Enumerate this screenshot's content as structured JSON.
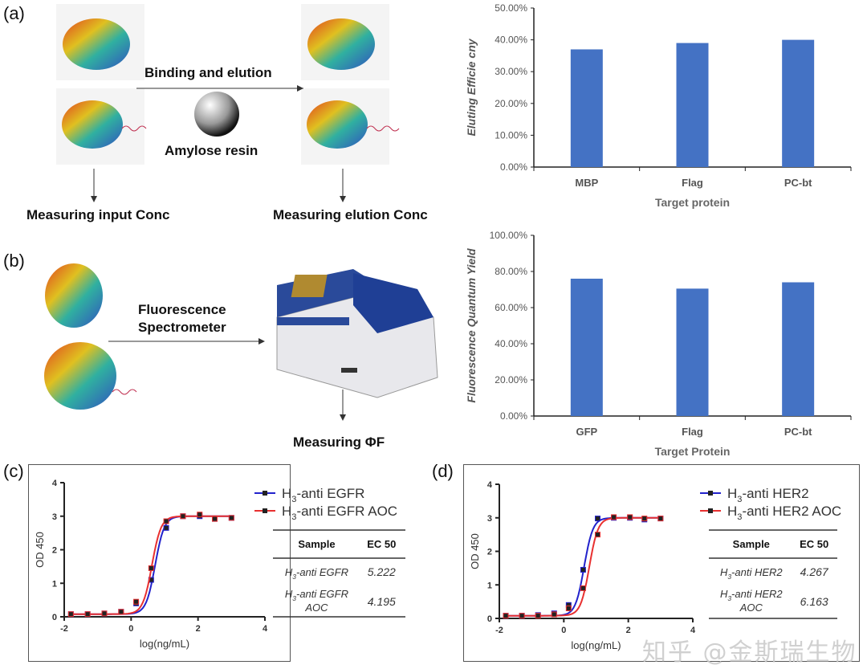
{
  "panels": {
    "a": {
      "label": "(a)",
      "step": "Binding and elution",
      "resin": "Amylose resin",
      "input": "Measuring input Conc",
      "elution": "Measuring elution Conc"
    },
    "b": {
      "label": "(b)",
      "instrument_line1": "Fluorescence",
      "instrument_line2": "Spectrometer",
      "measure": "Measuring ΦF"
    },
    "c": {
      "label": "(c)"
    },
    "d": {
      "label": "(d)"
    }
  },
  "watermark": "知乎 @金斯瑞生物",
  "colors": {
    "bar": "#4472C4",
    "blue": "#2222CC",
    "red": "#E83030",
    "axis": "#222222"
  },
  "chart_data": [
    {
      "id": "a",
      "type": "bar",
      "categories": [
        "MBP",
        "Flag",
        "PC-bt"
      ],
      "values": [
        37.0,
        39.0,
        40.0
      ],
      "ylabel": "Eluting Efficie cny",
      "xlabel": "Target protein",
      "ylim": [
        0,
        50
      ],
      "yticks": [
        "0.00%",
        "10.00%",
        "20.00%",
        "30.00%",
        "40.00%",
        "50.00%"
      ],
      "grid": false
    },
    {
      "id": "b",
      "type": "bar",
      "categories": [
        "GFP",
        "Flag",
        "PC-bt"
      ],
      "values": [
        76.0,
        70.5,
        74.0
      ],
      "ylabel": "Fluorescence Quantum Yield",
      "xlabel": "Target Protein",
      "ylim": [
        0,
        100
      ],
      "yticks": [
        "0.00%",
        "20.00%",
        "40.00%",
        "60.00%",
        "80.00%",
        "100.00%"
      ],
      "grid": false
    },
    {
      "id": "c",
      "type": "line",
      "xlabel": "log(ng/mL)",
      "ylabel": "OD 450",
      "xlim": [
        -2,
        4
      ],
      "ylim": [
        0,
        4
      ],
      "xticks": [
        "-2",
        "0",
        "2",
        "4"
      ],
      "yticks": [
        "0",
        "1",
        "2",
        "3",
        "4"
      ],
      "x": [
        -1.8,
        -1.3,
        -0.8,
        -0.3,
        0.15,
        0.6,
        1.05,
        1.55,
        2.05,
        2.5,
        3.0
      ],
      "series": [
        {
          "name": "H3-anti EGFR",
          "legend_main": "H",
          "legend_sub": "3",
          "legend_rest": "-anti EGFR",
          "color": "#2222CC",
          "values": [
            0.08,
            0.08,
            0.1,
            0.15,
            0.4,
            1.1,
            2.65,
            3.0,
            3.0,
            2.92,
            2.95
          ]
        },
        {
          "name": "H3-anti EGFR AOC",
          "legend_main": "H",
          "legend_sub": "3",
          "legend_rest": "-anti EGFR AOC",
          "color": "#E83030",
          "values": [
            0.08,
            0.08,
            0.1,
            0.15,
            0.45,
            1.45,
            2.85,
            3.0,
            3.05,
            2.92,
            2.95
          ]
        }
      ],
      "table": {
        "headers": [
          "Sample",
          "EC 50"
        ],
        "rows": [
          {
            "h": "H",
            "sub": "3",
            "rest": "-anti EGFR",
            "rest2": "",
            "ec50": "5.222"
          },
          {
            "h": "H",
            "sub": "3",
            "rest": "-anti EGFR",
            "rest2": "AOC",
            "ec50": "4.195"
          }
        ]
      }
    },
    {
      "id": "d",
      "type": "line",
      "xlabel": "log(ng/mL)",
      "ylabel": "OD 450",
      "xlim": [
        -2,
        4
      ],
      "ylim": [
        0,
        4
      ],
      "xticks": [
        "-2",
        "0",
        "2",
        "4"
      ],
      "yticks": [
        "0",
        "1",
        "2",
        "3",
        "4"
      ],
      "x": [
        -1.8,
        -1.3,
        -0.8,
        -0.3,
        0.15,
        0.6,
        1.05,
        1.55,
        2.05,
        2.5,
        3.0
      ],
      "series": [
        {
          "name": "H3-anti HER2",
          "legend_main": "H",
          "legend_sub": "3",
          "legend_rest": "-anti HER2",
          "color": "#2222CC",
          "values": [
            0.08,
            0.08,
            0.1,
            0.15,
            0.4,
            1.45,
            2.98,
            3.0,
            3.0,
            2.95,
            2.98
          ]
        },
        {
          "name": "H3-anti HER2 AOC",
          "legend_main": "H",
          "legend_sub": "3",
          "legend_rest": "-anti HER2 AOC",
          "color": "#E83030",
          "values": [
            0.08,
            0.08,
            0.08,
            0.12,
            0.3,
            0.9,
            2.5,
            3.02,
            3.02,
            2.98,
            2.98
          ]
        }
      ],
      "table": {
        "headers": [
          "Sample",
          "EC 50"
        ],
        "rows": [
          {
            "h": "H",
            "sub": "3",
            "rest": "-anti HER2",
            "rest2": "",
            "ec50": "4.267"
          },
          {
            "h": "H",
            "sub": "3",
            "rest": "-anti HER2",
            "rest2": "AOC",
            "ec50": "6.163"
          }
        ]
      }
    }
  ]
}
